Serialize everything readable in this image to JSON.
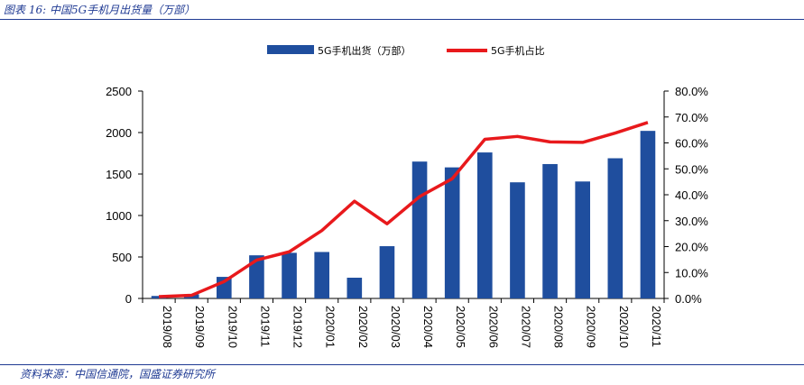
{
  "figure_title": "图表 16: 中国5G手机月出货量（万部）",
  "source": "资料来源：中国信通院，国盛证券研究所",
  "colors": {
    "bar": "#1f4e9e",
    "line": "#e8191c",
    "rule": "#1f3a93"
  },
  "chart_data": {
    "type": "bar",
    "categories": [
      "2019/08",
      "2019/09",
      "2019/10",
      "2019/11",
      "2019/12",
      "2020/01",
      "2020/02",
      "2020/03",
      "2020/04",
      "2020/05",
      "2020/06",
      "2020/07",
      "2020/08",
      "2020/09",
      "2020/10",
      "2020/11"
    ],
    "series": [
      {
        "name": "5G手机出货（万部）",
        "type": "bar",
        "axis": "left",
        "values": [
          30,
          50,
          260,
          520,
          550,
          560,
          250,
          630,
          1650,
          1580,
          1760,
          1400,
          1620,
          1410,
          1690,
          2020
        ]
      },
      {
        "name": "5G手机占比",
        "type": "line",
        "axis": "right",
        "values": [
          0.007,
          0.012,
          0.065,
          0.148,
          0.18,
          0.262,
          0.375,
          0.288,
          0.393,
          0.462,
          0.614,
          0.625,
          0.604,
          0.602,
          0.638,
          0.679
        ]
      }
    ],
    "y_left": {
      "ylim": [
        0,
        2500
      ],
      "ticks": [
        "0",
        "500",
        "1000",
        "1500",
        "2000",
        "2500"
      ]
    },
    "y_right": {
      "ylim": [
        0,
        0.8
      ],
      "ticks": [
        "0.0%",
        "10.0%",
        "20.0%",
        "30.0%",
        "40.0%",
        "50.0%",
        "60.0%",
        "70.0%",
        "80.0%"
      ]
    },
    "legend": {
      "position": "top-center"
    },
    "grid": false
  }
}
